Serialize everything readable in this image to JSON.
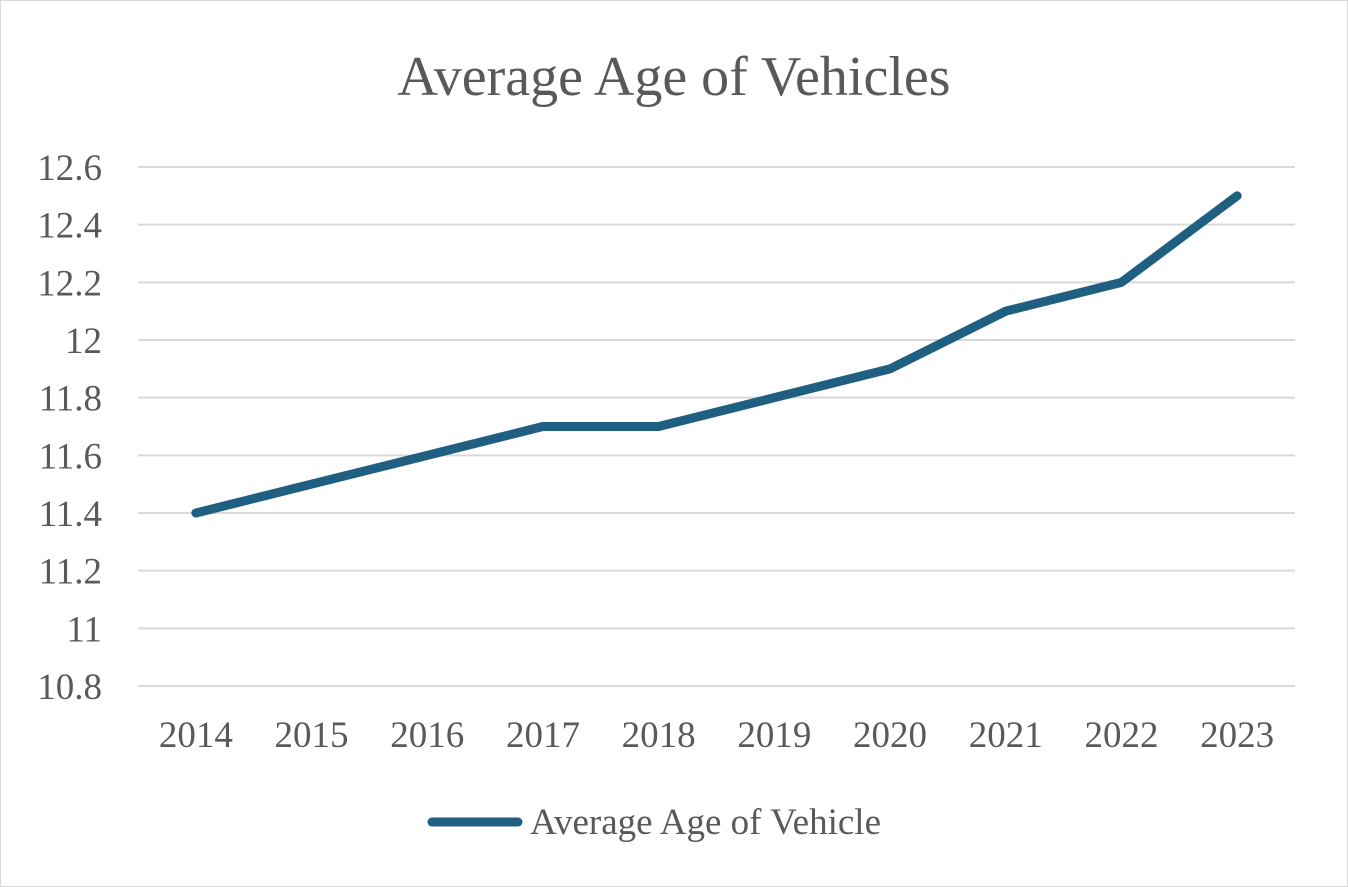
{
  "chart_data": {
    "type": "line",
    "title": "Average Age of Vehicles",
    "categories": [
      "2014",
      "2015",
      "2016",
      "2017",
      "2018",
      "2019",
      "2020",
      "2021",
      "2022",
      "2023"
    ],
    "series": [
      {
        "name": "Average Age of Vehicle",
        "values": [
          11.4,
          11.5,
          11.6,
          11.7,
          11.7,
          11.8,
          11.9,
          12.1,
          12.2,
          12.5
        ],
        "color": "#1f5f82"
      }
    ],
    "ylim": [
      10.8,
      12.6
    ],
    "yticks": [
      "10.8",
      "11",
      "11.2",
      "11.4",
      "11.6",
      "11.8",
      "12",
      "12.2",
      "12.4",
      "12.6"
    ],
    "grid": true,
    "legend": "bottom"
  }
}
